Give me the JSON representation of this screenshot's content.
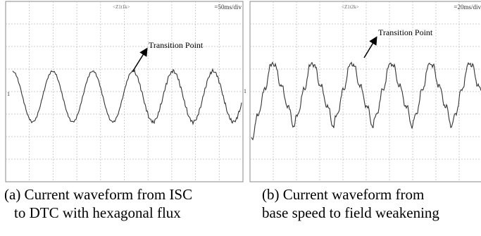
{
  "figures": [
    {
      "scope_label": "<Z1t1k>",
      "timebase": "=50ms/div",
      "marker": "1",
      "annotation": "Transition Point",
      "caption": [
        "(a) Current waveform from ISC",
        "to DTC with hexagonal flux"
      ]
    },
    {
      "scope_label": "<Z1t2k>",
      "timebase": "=20ms/div",
      "marker": "1",
      "annotation": "Transition Point",
      "caption": [
        "(b) Current waveform from",
        "base speed to field weakening"
      ]
    }
  ]
}
